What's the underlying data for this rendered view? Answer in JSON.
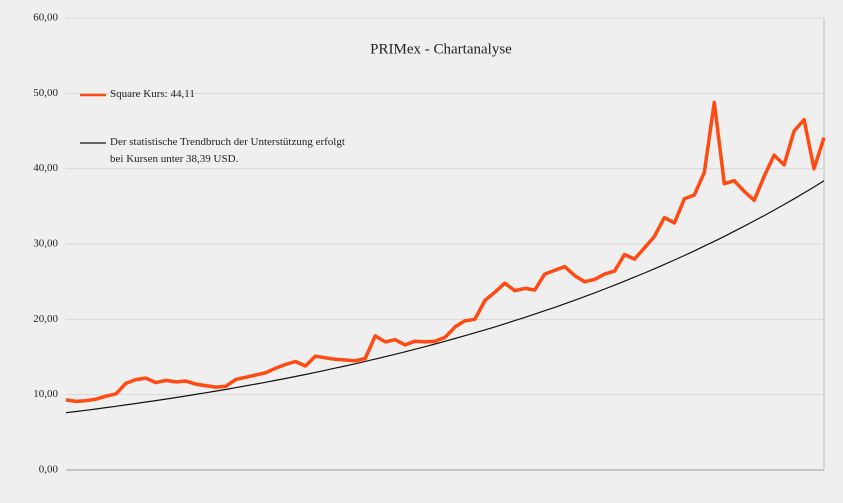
{
  "chart_data": {
    "type": "line",
    "title": "PRIMex - Chartanalyse",
    "ylim": [
      0,
      60
    ],
    "yticks": [
      {
        "value": 0,
        "label": "0,00"
      },
      {
        "value": 10,
        "label": "10,00"
      },
      {
        "value": 20,
        "label": "20,00"
      },
      {
        "value": 30,
        "label": "30,00"
      },
      {
        "value": 40,
        "label": "40,00"
      },
      {
        "value": 50,
        "label": "50,00"
      },
      {
        "value": 60,
        "label": "60,00"
      }
    ],
    "grid": true,
    "legend": "upper left",
    "series": [
      {
        "name": "Square Kurs: 44,11",
        "color": "#ff4a12",
        "width": 3.5,
        "values": [
          9.3,
          9.1,
          9.2,
          9.4,
          9.8,
          10.1,
          11.5,
          12.0,
          12.2,
          11.6,
          11.9,
          11.7,
          11.8,
          11.4,
          11.2,
          11.0,
          11.1,
          12.0,
          12.3,
          12.6,
          12.9,
          13.5,
          14.0,
          14.4,
          13.8,
          15.1,
          14.9,
          14.7,
          14.6,
          14.5,
          14.8,
          17.8,
          17.0,
          17.3,
          16.6,
          17.1,
          17.0,
          17.1,
          17.6,
          19.0,
          19.8,
          20.0,
          22.5,
          23.6,
          24.8,
          23.8,
          24.1,
          23.9,
          26.0,
          26.5,
          27.0,
          25.8,
          25.0,
          25.3,
          26.0,
          26.4,
          28.6,
          28.0,
          29.5,
          31.0,
          33.5,
          32.8,
          36.0,
          36.5,
          39.5,
          48.8,
          38.0,
          38.4,
          37.0,
          35.8,
          39.0,
          41.8,
          40.5,
          45.0,
          46.5,
          40.0,
          44.11
        ]
      },
      {
        "name": "Der statistische Trendbruch der Unterstützung erfolgt\nbei Kursen unter 38,39 USD.",
        "color": "#111111",
        "width": 1.2,
        "values": [
          7.6,
          7.76,
          7.93,
          8.1,
          8.28,
          8.46,
          8.64,
          8.83,
          9.02,
          9.21,
          9.41,
          9.61,
          9.82,
          10.03,
          10.25,
          10.47,
          10.69,
          10.92,
          11.16,
          11.4,
          11.64,
          11.89,
          12.15,
          12.41,
          12.68,
          12.95,
          13.23,
          13.52,
          13.81,
          14.1,
          14.41,
          14.72,
          15.04,
          15.36,
          15.69,
          16.03,
          16.37,
          16.72,
          17.08,
          17.45,
          17.83,
          18.21,
          18.6,
          19.0,
          19.41,
          19.83,
          20.26,
          20.69,
          21.14,
          21.59,
          22.06,
          22.53,
          23.02,
          23.51,
          24.02,
          24.53,
          25.06,
          25.6,
          26.15,
          26.71,
          27.29,
          27.88,
          28.48,
          29.09,
          29.72,
          30.36,
          31.01,
          31.68,
          32.36,
          33.06,
          33.77,
          34.5,
          35.24,
          36.0,
          36.78,
          37.57,
          38.39
        ]
      }
    ]
  }
}
